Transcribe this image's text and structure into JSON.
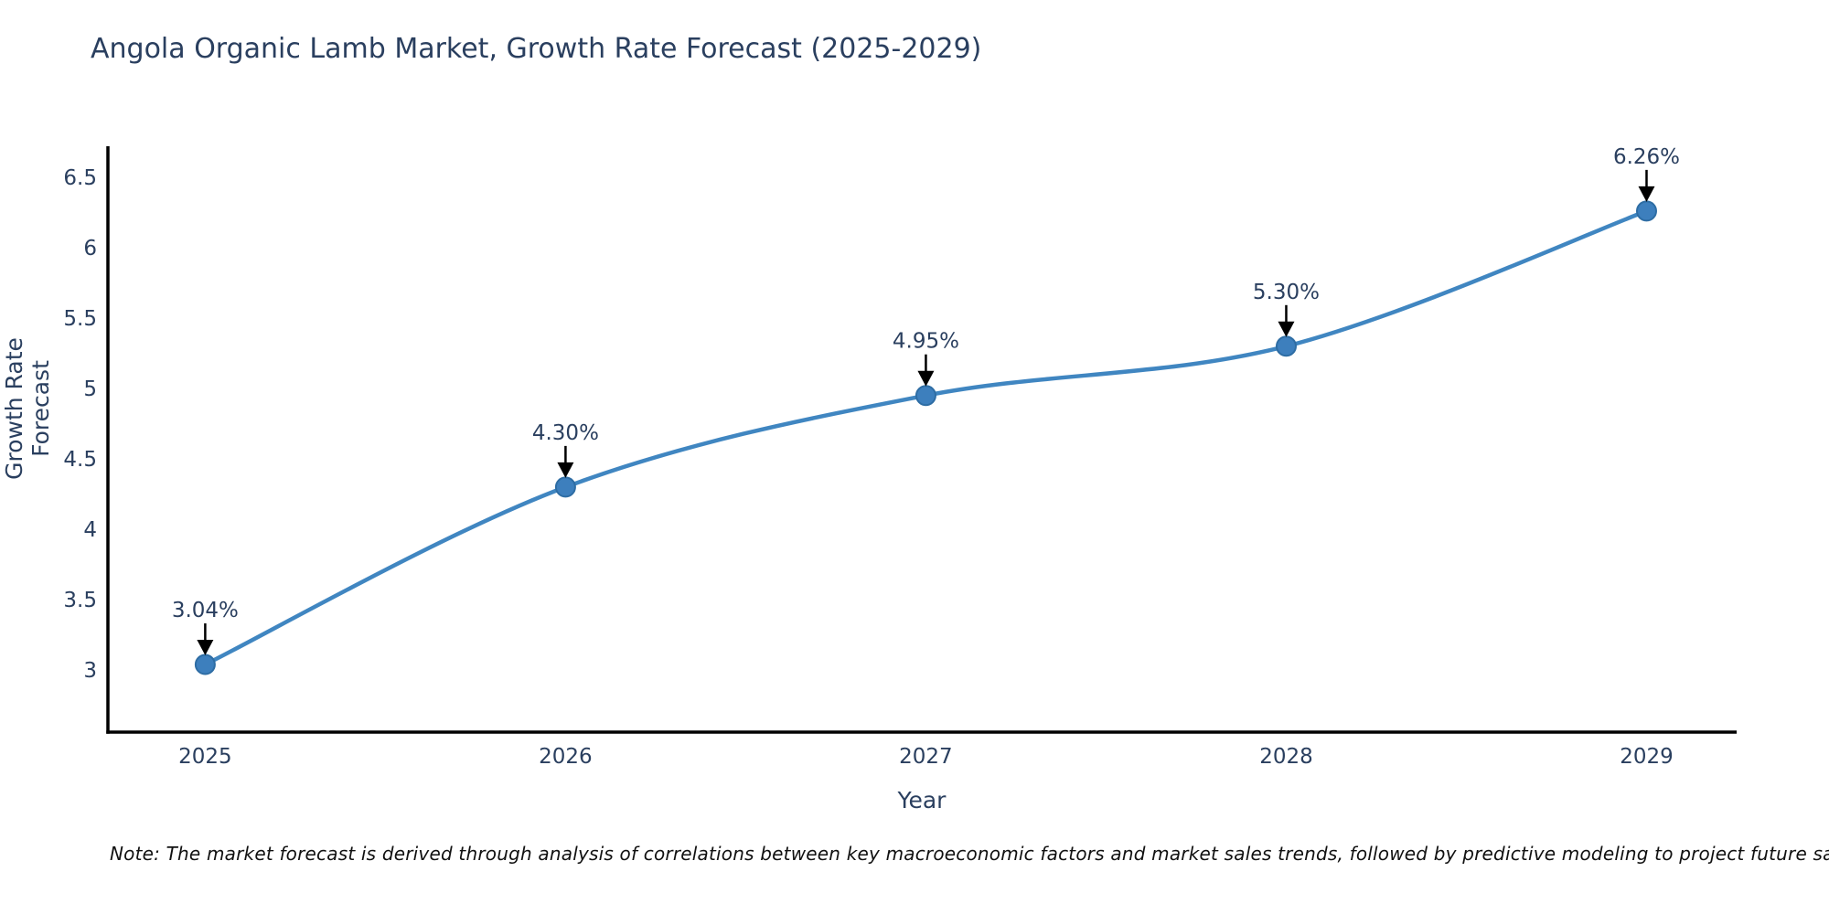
{
  "note": "Note: The market forecast is derived through analysis of correlations between key macroeconomic factors and market sales trends, followed by predictive modeling to project future sales",
  "colors": {
    "line": "#4086c1",
    "marker_fill": "#3d7fbd",
    "marker_stroke": "#2e6da4",
    "axis": "#000000",
    "text": "#2a3f5f",
    "annotation_arrow": "#000000",
    "note_text": "#111111",
    "background": "#ffffff"
  },
  "chart_data": {
    "type": "line",
    "title": "Angola Organic Lamb Market, Growth Rate Forecast (2025-2029)",
    "xlabel": "Year",
    "ylabel": "Growth Rate Forecast",
    "x": [
      2025,
      2026,
      2027,
      2028,
      2029
    ],
    "values": [
      3.04,
      4.3,
      4.95,
      5.3,
      6.26
    ],
    "point_labels": [
      "3.04%",
      "4.30%",
      "4.95%",
      "5.30%",
      "6.26%"
    ],
    "xticks": [
      2025,
      2026,
      2027,
      2028,
      2029
    ],
    "yticks": [
      3,
      3.5,
      4,
      4.5,
      5,
      5.5,
      6,
      6.5
    ],
    "xlim": [
      2024.73,
      2029.25
    ],
    "ylim": [
      2.56,
      6.72
    ],
    "grid": false,
    "legend": "none",
    "line_shape": "spline",
    "markers": true,
    "annotations": "value-labels-with-down-arrows"
  }
}
